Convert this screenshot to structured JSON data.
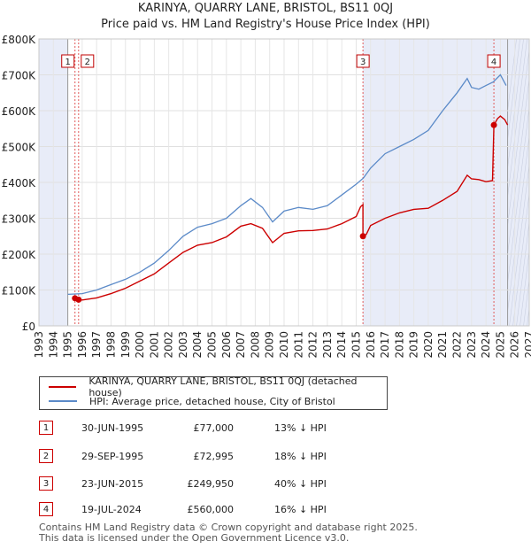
{
  "title_line1": "KARINYA, QUARRY LANE, BRISTOL, BS11 0QJ",
  "title_line2": "Price paid vs. HM Land Registry's House Price Index (HPI)",
  "chart_data": {
    "type": "line",
    "ylim": [
      0,
      800000
    ],
    "xlim": [
      1993,
      2027
    ],
    "y_ticks": [
      0,
      100000,
      200000,
      300000,
      400000,
      500000,
      600000,
      700000,
      800000
    ],
    "y_tick_labels": [
      "£0",
      "£100K",
      "£200K",
      "£300K",
      "£400K",
      "£500K",
      "£600K",
      "£700K",
      "£800K"
    ],
    "x_ticks": [
      1993,
      1994,
      1995,
      1996,
      1997,
      1998,
      1999,
      2000,
      2001,
      2002,
      2003,
      2004,
      2005,
      2006,
      2007,
      2008,
      2009,
      2010,
      2011,
      2012,
      2013,
      2014,
      2015,
      2016,
      2017,
      2018,
      2019,
      2020,
      2021,
      2022,
      2023,
      2024,
      2025,
      2026,
      2027
    ],
    "x_tick_labels": [
      "1993",
      "1994",
      "1995",
      "1996",
      "1997",
      "1998",
      "1999",
      "2000",
      "2001",
      "2002",
      "2003",
      "2004",
      "2005",
      "2006",
      "2007",
      "2008",
      "2009",
      "2010",
      "2011",
      "2012",
      "2013",
      "2014",
      "2015",
      "2016",
      "2017",
      "2018",
      "2019",
      "2020",
      "2021",
      "2022",
      "2023",
      "2024",
      "2025",
      "2026",
      "2027"
    ],
    "series": [
      {
        "name": "KARINYA, QUARRY LANE, BRISTOL, BS11 0QJ (detached house)",
        "color": "#cc0000",
        "segments": [
          [
            [
              1995.5,
              77000
            ],
            [
              1995.75,
              72995
            ]
          ],
          [
            [
              1995.75,
              72995
            ],
            [
              1996.0,
              72000
            ],
            [
              1997.0,
              78000
            ],
            [
              1998.0,
              90000
            ],
            [
              1999.0,
              105000
            ],
            [
              2000.0,
              125000
            ],
            [
              2001.0,
              145000
            ],
            [
              2002.0,
              175000
            ],
            [
              2003.0,
              205000
            ],
            [
              2004.0,
              225000
            ],
            [
              2005.0,
              232000
            ],
            [
              2006.0,
              248000
            ],
            [
              2007.0,
              278000
            ],
            [
              2007.7,
              285000
            ],
            [
              2008.5,
              272000
            ],
            [
              2009.2,
              232000
            ],
            [
              2010.0,
              258000
            ],
            [
              2011.0,
              265000
            ],
            [
              2012.0,
              266000
            ],
            [
              2013.0,
              270000
            ],
            [
              2014.0,
              285000
            ],
            [
              2015.0,
              305000
            ],
            [
              2015.3,
              332000
            ],
            [
              2015.47,
              338000
            ],
            [
              2015.47,
              249950
            ]
          ],
          [
            [
              2015.47,
              249950
            ],
            [
              2015.7,
              255000
            ],
            [
              2016.0,
              280000
            ],
            [
              2017.0,
              300000
            ],
            [
              2018.0,
              315000
            ],
            [
              2019.0,
              325000
            ],
            [
              2020.0,
              328000
            ],
            [
              2021.0,
              350000
            ],
            [
              2022.0,
              375000
            ],
            [
              2022.7,
              420000
            ],
            [
              2023.0,
              410000
            ],
            [
              2023.5,
              408000
            ],
            [
              2024.0,
              402000
            ],
            [
              2024.45,
              405000
            ],
            [
              2024.55,
              560000
            ]
          ],
          [
            [
              2024.55,
              560000
            ],
            [
              2024.8,
              578000
            ],
            [
              2025.0,
              585000
            ],
            [
              2025.3,
              575000
            ],
            [
              2025.5,
              560000
            ]
          ]
        ]
      },
      {
        "name": "HPI: Average price, detached house, City of Bristol",
        "color": "#5b8ac8",
        "points": [
          [
            1995.0,
            88000
          ],
          [
            1996.0,
            90000
          ],
          [
            1997.0,
            100000
          ],
          [
            1998.0,
            115000
          ],
          [
            1999.0,
            130000
          ],
          [
            2000.0,
            150000
          ],
          [
            2001.0,
            175000
          ],
          [
            2002.0,
            210000
          ],
          [
            2003.0,
            250000
          ],
          [
            2004.0,
            275000
          ],
          [
            2005.0,
            285000
          ],
          [
            2006.0,
            300000
          ],
          [
            2007.0,
            335000
          ],
          [
            2007.7,
            355000
          ],
          [
            2008.5,
            330000
          ],
          [
            2009.2,
            290000
          ],
          [
            2010.0,
            320000
          ],
          [
            2011.0,
            330000
          ],
          [
            2012.0,
            325000
          ],
          [
            2013.0,
            335000
          ],
          [
            2014.0,
            365000
          ],
          [
            2015.0,
            395000
          ],
          [
            2015.5,
            412000
          ],
          [
            2016.0,
            440000
          ],
          [
            2017.0,
            480000
          ],
          [
            2018.0,
            500000
          ],
          [
            2019.0,
            520000
          ],
          [
            2020.0,
            545000
          ],
          [
            2021.0,
            600000
          ],
          [
            2022.0,
            650000
          ],
          [
            2022.7,
            690000
          ],
          [
            2023.0,
            665000
          ],
          [
            2023.5,
            660000
          ],
          [
            2024.0,
            670000
          ],
          [
            2024.5,
            680000
          ],
          [
            2025.0,
            700000
          ],
          [
            2025.4,
            670000
          ]
        ]
      }
    ],
    "sales": [
      {
        "id": "1",
        "x": 1995.5,
        "price": 77000
      },
      {
        "id": "2",
        "x": 1995.75,
        "price": 72995
      },
      {
        "id": "3",
        "x": 2015.47,
        "price": 249950
      },
      {
        "id": "4",
        "x": 2024.55,
        "price": 560000
      }
    ],
    "shaded_ranges": [
      [
        1993.0,
        1995.0
      ],
      [
        2015.47,
        2024.55
      ],
      [
        2025.5,
        2027.0
      ]
    ],
    "data_end_x": 2025.5
  },
  "legend": {
    "red_label": "KARINYA, QUARRY LANE, BRISTOL, BS11 0QJ (detached house)",
    "blue_label": "HPI: Average price, detached house, City of Bristol"
  },
  "sales_table": [
    {
      "num": "1",
      "date": "30-JUN-1995",
      "price": "£77,000",
      "hpi": "13% ↓ HPI"
    },
    {
      "num": "2",
      "date": "29-SEP-1995",
      "price": "£72,995",
      "hpi": "18% ↓ HPI"
    },
    {
      "num": "3",
      "date": "23-JUN-2015",
      "price": "£249,950",
      "hpi": "40% ↓ HPI"
    },
    {
      "num": "4",
      "date": "19-JUL-2024",
      "price": "£560,000",
      "hpi": "16% ↓ HPI"
    }
  ],
  "footer_line1": "Contains HM Land Registry data © Crown copyright and database right 2025.",
  "footer_line2": "This data is licensed under the Open Government Licence v3.0."
}
